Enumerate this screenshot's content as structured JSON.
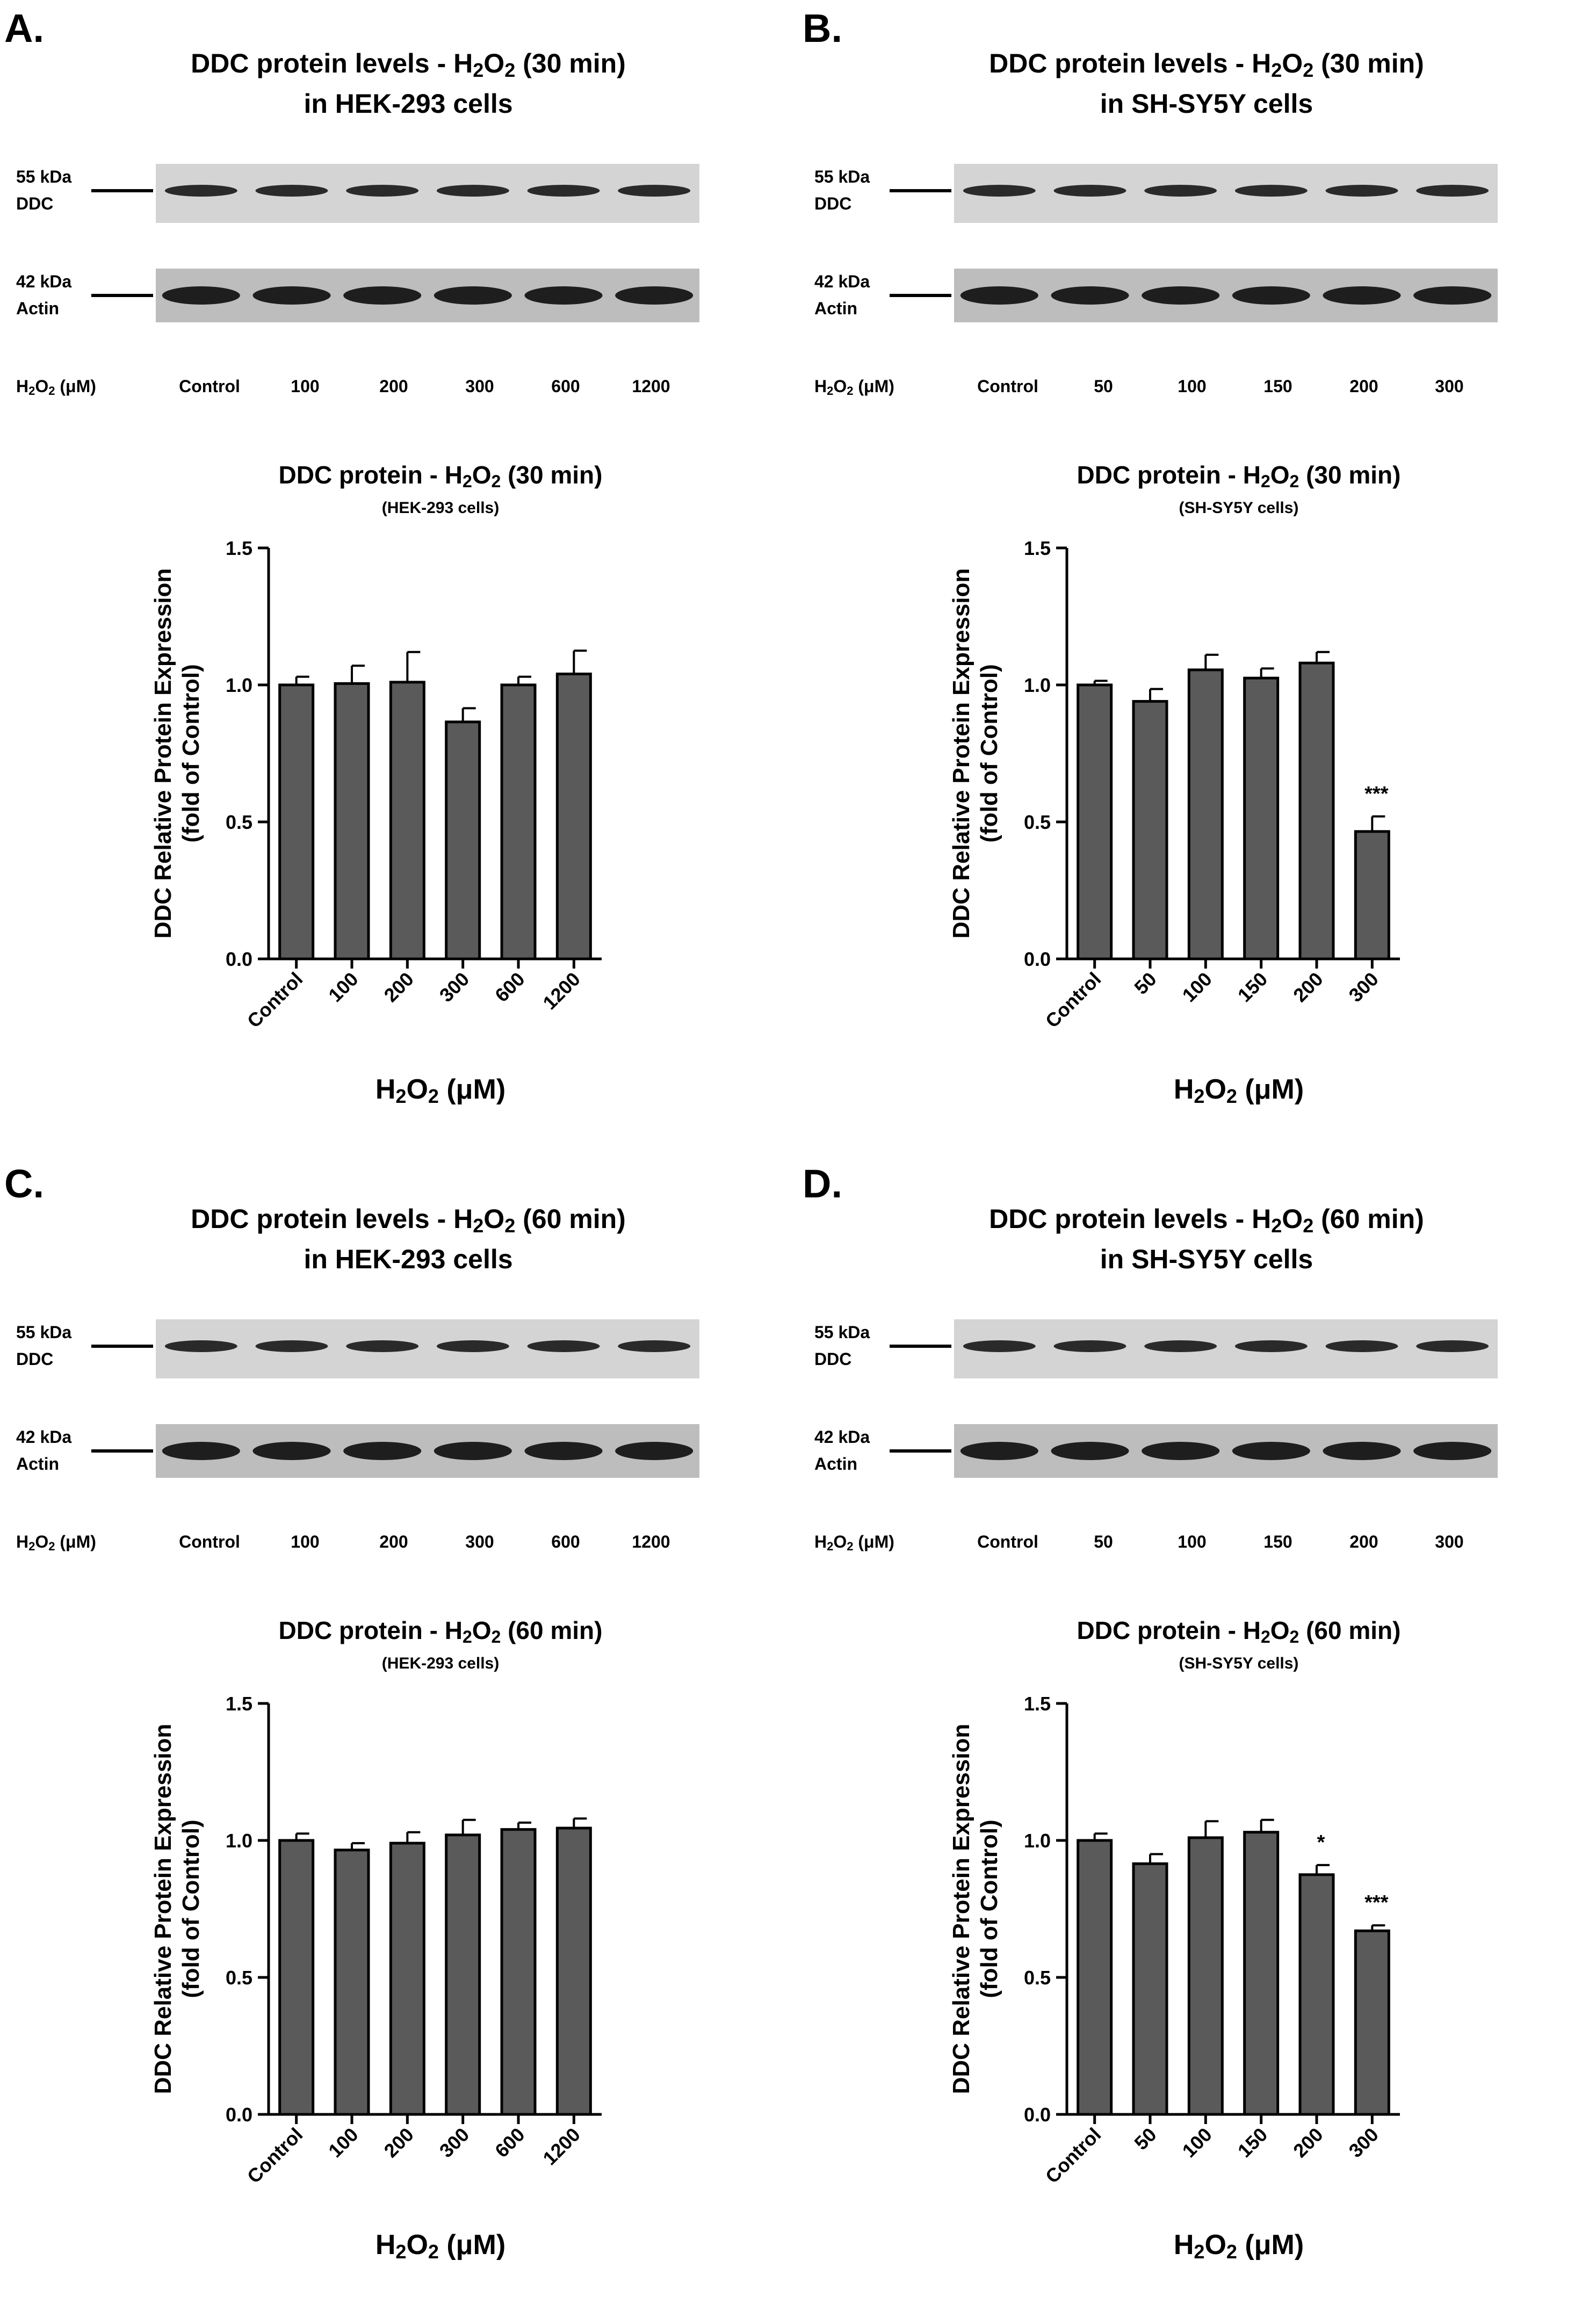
{
  "panels": [
    {
      "id": "A",
      "label": "A.",
      "blot": {
        "title_prefix": "DDC protein levels - H",
        "title_time": " (30 min)",
        "title_line2": "in HEK-293 cells",
        "ddc_kda": "55 kDa",
        "ddc_name": "DDC",
        "actin_kda": "42 kDa",
        "actin_name": "Actin",
        "row_label": "(μM)",
        "lanes": [
          "Control",
          "100",
          "200",
          "300",
          "600",
          "1200"
        ]
      },
      "chart_data": {
        "type": "bar",
        "title_prefix": "DDC protein - H",
        "title_time": " (30 min)",
        "subtitle": "(HEK-293 cells)",
        "ylabel_line1": "DDC Relative Protein Expression",
        "ylabel_line2": "(fold of Control)",
        "xlabel": "(μM)",
        "categories": [
          "Control",
          "100",
          "200",
          "300",
          "600",
          "1200"
        ],
        "values": [
          1.0,
          1.005,
          1.01,
          0.865,
          1.0,
          1.04
        ],
        "errors": [
          0.03,
          0.065,
          0.11,
          0.05,
          0.03,
          0.085
        ],
        "significance": [
          "",
          "",
          "",
          "",
          "",
          ""
        ],
        "ylim": [
          0,
          1.5
        ],
        "yticks": [
          0.0,
          0.5,
          1.0,
          1.5
        ],
        "bar_color": "#5a5a5a"
      }
    },
    {
      "id": "B",
      "label": "B.",
      "blot": {
        "title_prefix": "DDC protein levels - H",
        "title_time": " (30 min)",
        "title_line2": "in SH-SY5Y cells",
        "ddc_kda": "55 kDa",
        "ddc_name": "DDC",
        "actin_kda": "42 kDa",
        "actin_name": "Actin",
        "row_label": "(μM)",
        "lanes": [
          "Control",
          "50",
          "100",
          "150",
          "200",
          "300"
        ]
      },
      "chart_data": {
        "type": "bar",
        "title_prefix": "DDC protein - H",
        "title_time": " (30 min)",
        "subtitle": "(SH-SY5Y cells)",
        "ylabel_line1": "DDC Relative Protein Expression",
        "ylabel_line2": "(fold of Control)",
        "xlabel": "(μM)",
        "categories": [
          "Control",
          "50",
          "100",
          "150",
          "200",
          "300"
        ],
        "values": [
          1.0,
          0.94,
          1.055,
          1.025,
          1.08,
          0.465
        ],
        "errors": [
          0.015,
          0.045,
          0.055,
          0.035,
          0.04,
          0.055
        ],
        "significance": [
          "",
          "",
          "",
          "",
          "",
          "***"
        ],
        "ylim": [
          0,
          1.5
        ],
        "yticks": [
          0.0,
          0.5,
          1.0,
          1.5
        ],
        "bar_color": "#5a5a5a"
      }
    },
    {
      "id": "C",
      "label": "C.",
      "blot": {
        "title_prefix": "DDC protein levels - H",
        "title_time": " (60 min)",
        "title_line2": "in HEK-293 cells",
        "ddc_kda": "55 kDa",
        "ddc_name": "DDC",
        "actin_kda": "42 kDa",
        "actin_name": "Actin",
        "row_label": "(μM)",
        "lanes": [
          "Control",
          "100",
          "200",
          "300",
          "600",
          "1200"
        ]
      },
      "chart_data": {
        "type": "bar",
        "title_prefix": "DDC protein - H",
        "title_time": " (60 min)",
        "subtitle": "(HEK-293 cells)",
        "ylabel_line1": "DDC Relative Protein Expression",
        "ylabel_line2": "(fold of Control)",
        "xlabel": "(μM)",
        "categories": [
          "Control",
          "100",
          "200",
          "300",
          "600",
          "1200"
        ],
        "values": [
          1.0,
          0.965,
          0.99,
          1.02,
          1.04,
          1.045
        ],
        "errors": [
          0.025,
          0.025,
          0.04,
          0.055,
          0.025,
          0.035
        ],
        "significance": [
          "",
          "",
          "",
          "",
          "",
          ""
        ],
        "ylim": [
          0,
          1.5
        ],
        "yticks": [
          0.0,
          0.5,
          1.0,
          1.5
        ],
        "bar_color": "#5a5a5a"
      }
    },
    {
      "id": "D",
      "label": "D.",
      "blot": {
        "title_prefix": "DDC protein levels - H",
        "title_time": " (60 min)",
        "title_line2": "in SH-SY5Y cells",
        "ddc_kda": "55 kDa",
        "ddc_name": "DDC",
        "actin_kda": "42 kDa",
        "actin_name": "Actin",
        "row_label": "(μM)",
        "lanes": [
          "Control",
          "50",
          "100",
          "150",
          "200",
          "300"
        ]
      },
      "chart_data": {
        "type": "bar",
        "title_prefix": "DDC protein - H",
        "title_time": " (60 min)",
        "subtitle": "(SH-SY5Y cells)",
        "ylabel_line1": "DDC Relative Protein Expression",
        "ylabel_line2": "(fold of Control)",
        "xlabel": "(μM)",
        "categories": [
          "Control",
          "50",
          "100",
          "150",
          "200",
          "300"
        ],
        "values": [
          1.0,
          0.915,
          1.01,
          1.03,
          0.875,
          0.67
        ],
        "errors": [
          0.025,
          0.035,
          0.06,
          0.045,
          0.035,
          0.02
        ],
        "significance": [
          "",
          "",
          "",
          "",
          "*",
          "***"
        ],
        "ylim": [
          0,
          1.5
        ],
        "yticks": [
          0.0,
          0.5,
          1.0,
          1.5
        ],
        "bar_color": "#5a5a5a"
      }
    }
  ],
  "chem": {
    "h": "H",
    "sub2": "2",
    "o": "O"
  }
}
